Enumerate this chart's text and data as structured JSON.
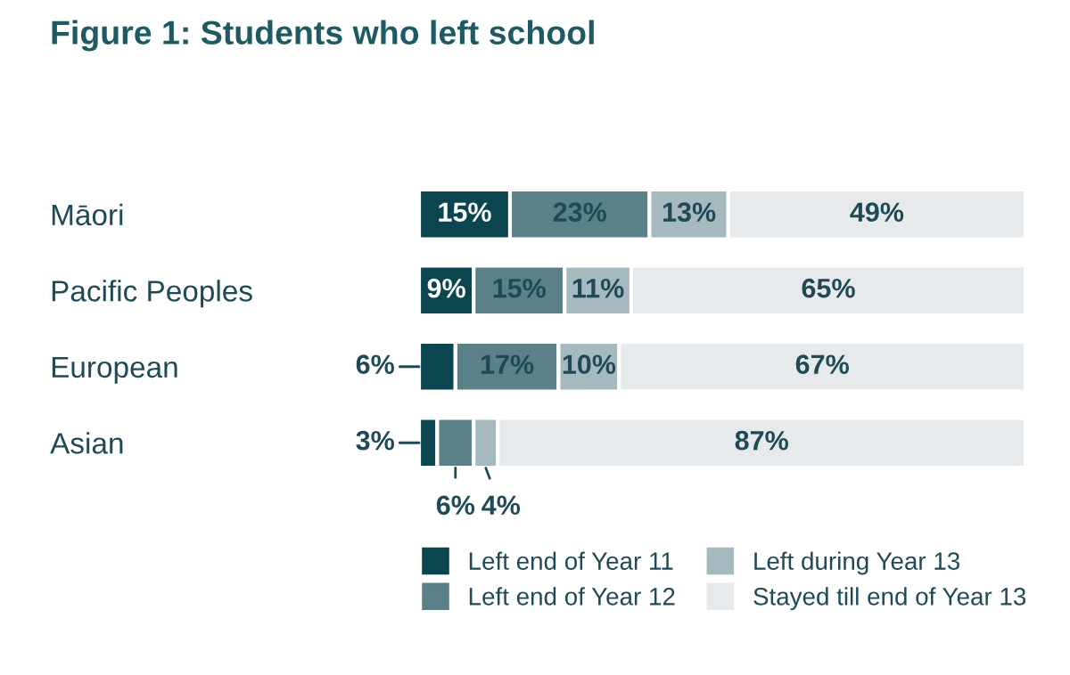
{
  "chart_data": {
    "type": "bar",
    "orientation": "horizontal",
    "stacked": true,
    "title": "Figure 1: Students who left school",
    "categories": [
      "Māori",
      "Pacific Peoples",
      "European",
      "Asian"
    ],
    "xlim": [
      0,
      100
    ],
    "tick_labels": false,
    "grid": false,
    "legend": "bottom right",
    "series": [
      {
        "name": "Left end of Year 11",
        "color": "#0b4650",
        "values": [
          15,
          9,
          6,
          3
        ],
        "value_labels": [
          "15%",
          "9%",
          "6%",
          "3%"
        ]
      },
      {
        "name": "Left end of Year 12",
        "color": "#5a8088",
        "values": [
          23,
          15,
          17,
          6
        ],
        "value_labels": [
          "23%",
          "15%",
          "17%",
          "6%"
        ]
      },
      {
        "name": "Left during Year 13",
        "color": "#a6b9bf",
        "values": [
          13,
          11,
          10,
          4
        ],
        "value_labels": [
          "13%",
          "11%",
          "10%",
          "4%"
        ]
      },
      {
        "name": "Stayed till end of Year 13",
        "color": "#e6eaec",
        "values": [
          49,
          65,
          67,
          87
        ],
        "value_labels": [
          "49%",
          "65%",
          "67%",
          "87%"
        ]
      }
    ]
  }
}
